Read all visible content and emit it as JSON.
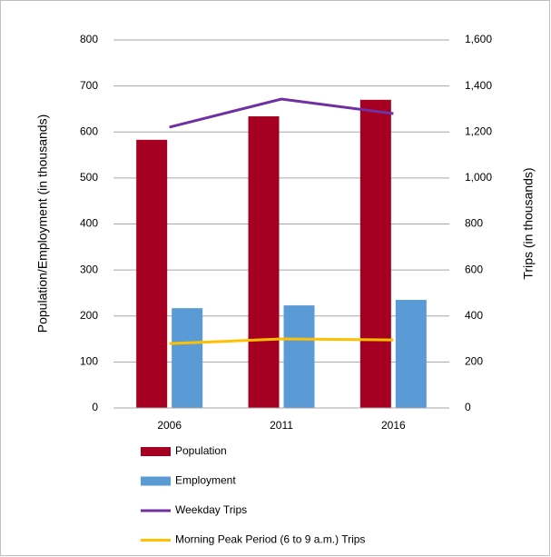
{
  "chart_data": {
    "type": "bar",
    "categories": [
      "2006",
      "2011",
      "2016"
    ],
    "series": [
      {
        "name": "Population",
        "color": "#a50021",
        "type": "bar",
        "values": [
          583,
          634,
          670
        ]
      },
      {
        "name": "Employment",
        "color": "#5b9bd5",
        "type": "bar",
        "values": [
          217,
          223,
          235
        ]
      },
      {
        "name": "Weekday Trips",
        "color": "#7030a0",
        "type": "line",
        "axis": "y2",
        "values": [
          1221,
          1343,
          1280
        ]
      },
      {
        "name": "Morning Peak Period (6 to 9 a.m.) Trips",
        "color": "#ffc000",
        "type": "line",
        "axis": "y2",
        "values": [
          280,
          300,
          296
        ]
      }
    ],
    "ylabel": "Population/Employment (in thousands)",
    "y2label": "Trips (in thousands)",
    "ylim": [
      0,
      800
    ],
    "yticks": [
      0,
      100,
      200,
      300,
      400,
      500,
      600,
      700,
      800
    ],
    "y2lim": [
      0,
      1600
    ],
    "y2ticks": [
      0,
      200,
      400,
      600,
      800,
      {
        "value": 1000,
        "label": "1,000"
      },
      {
        "value": 1200,
        "label": "1,200"
      },
      {
        "value": 1400,
        "label": "1,400"
      },
      {
        "value": 1600,
        "label": "1,600"
      }
    ],
    "grid": true,
    "legend": "bottom"
  }
}
